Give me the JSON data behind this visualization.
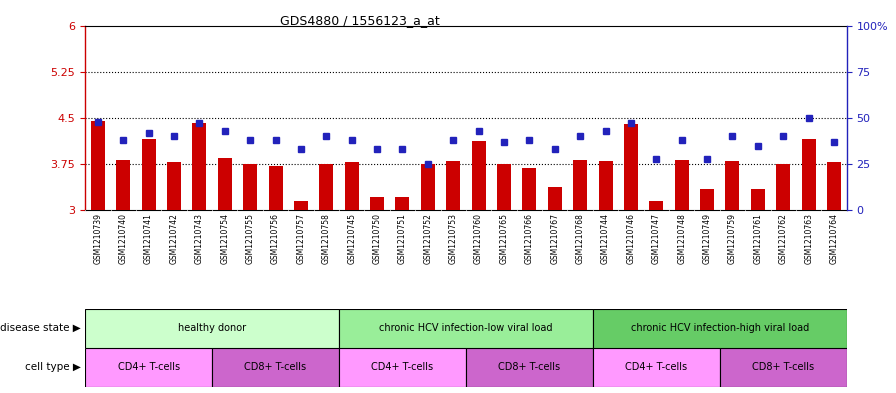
{
  "title": "GDS4880 / 1556123_a_at",
  "samples": [
    "GSM1210739",
    "GSM1210740",
    "GSM1210741",
    "GSM1210742",
    "GSM1210743",
    "GSM1210754",
    "GSM1210755",
    "GSM1210756",
    "GSM1210757",
    "GSM1210758",
    "GSM1210745",
    "GSM1210750",
    "GSM1210751",
    "GSM1210752",
    "GSM1210753",
    "GSM1210760",
    "GSM1210765",
    "GSM1210766",
    "GSM1210767",
    "GSM1210768",
    "GSM1210744",
    "GSM1210746",
    "GSM1210747",
    "GSM1210748",
    "GSM1210749",
    "GSM1210759",
    "GSM1210761",
    "GSM1210762",
    "GSM1210763",
    "GSM1210764"
  ],
  "bar_values": [
    4.45,
    3.82,
    4.15,
    3.78,
    4.42,
    3.85,
    3.75,
    3.72,
    3.15,
    3.75,
    3.78,
    3.22,
    3.22,
    3.75,
    3.8,
    4.12,
    3.75,
    3.68,
    3.38,
    3.82,
    3.8,
    4.4,
    3.15,
    3.82,
    3.35,
    3.8,
    3.35,
    3.75,
    4.15,
    3.78
  ],
  "dot_values_pct": [
    48,
    38,
    42,
    40,
    47,
    43,
    38,
    38,
    33,
    40,
    38,
    33,
    33,
    25,
    38,
    43,
    37,
    38,
    33,
    40,
    43,
    47,
    28,
    38,
    28,
    40,
    35,
    40,
    50,
    37
  ],
  "ylim_left": [
    3.0,
    6.0
  ],
  "ylim_right": [
    0,
    100
  ],
  "yticks_left": [
    3.0,
    3.75,
    4.5,
    5.25,
    6.0
  ],
  "ytick_labels_left": [
    "3",
    "3.75",
    "4.5",
    "5.25",
    "6"
  ],
  "yticks_right": [
    0,
    25,
    50,
    75,
    100
  ],
  "ytick_labels_right": [
    "0",
    "25",
    "50",
    "75",
    "100%"
  ],
  "hlines": [
    3.75,
    4.5,
    5.25
  ],
  "bar_color": "#CC0000",
  "dot_color": "#2222BB",
  "bar_bottom": 3.0,
  "disease_state_groups": [
    {
      "label": "healthy donor",
      "start": 0,
      "end": 10,
      "color": "#CCFFCC"
    },
    {
      "label": "chronic HCV infection-low viral load",
      "start": 10,
      "end": 20,
      "color": "#99EE99"
    },
    {
      "label": "chronic HCV infection-high viral load",
      "start": 20,
      "end": 30,
      "color": "#66CC66"
    }
  ],
  "cell_type_groups": [
    {
      "label": "CD4+ T-cells",
      "start": 0,
      "end": 5,
      "color": "#FF99FF"
    },
    {
      "label": "CD8+ T-cells",
      "start": 5,
      "end": 10,
      "color": "#CC66CC"
    },
    {
      "label": "CD4+ T-cells",
      "start": 10,
      "end": 15,
      "color": "#FF99FF"
    },
    {
      "label": "CD8+ T-cells",
      "start": 15,
      "end": 20,
      "color": "#CC66CC"
    },
    {
      "label": "CD4+ T-cells",
      "start": 20,
      "end": 25,
      "color": "#FF99FF"
    },
    {
      "label": "CD8+ T-cells",
      "start": 25,
      "end": 30,
      "color": "#CC66CC"
    }
  ],
  "disease_state_label": "disease state",
  "cell_type_label": "cell type",
  "tick_color_left": "#CC0000",
  "tick_color_right": "#2222BB",
  "sample_label_bg": "#DDDDDD",
  "background_color": "#FFFFFF"
}
